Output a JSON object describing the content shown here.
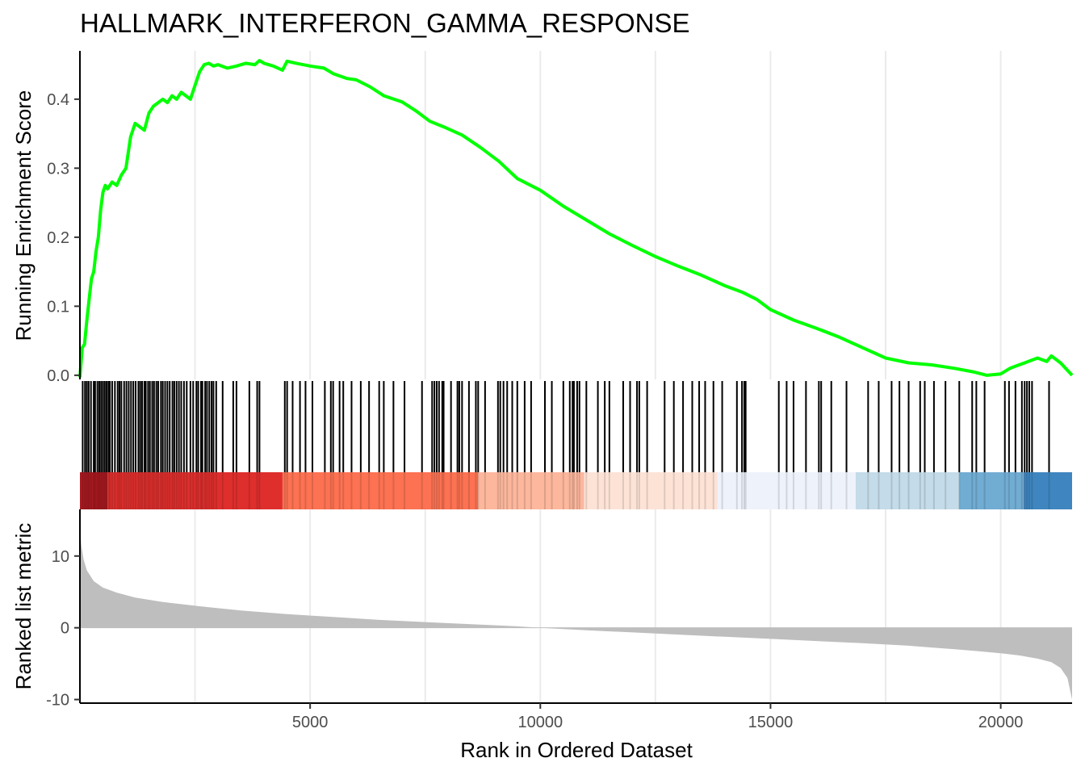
{
  "chart_data": {
    "type": "line",
    "title": "HALLMARK_INTERFERON_GAMMA_RESPONSE",
    "xlabel": "Rank in Ordered Dataset",
    "xlim": [
      0,
      21550
    ],
    "x_ticks": [
      5000,
      10000,
      15000,
      20000
    ],
    "x_tick_labels": [
      "5000",
      "10000",
      "15000",
      "20000"
    ],
    "grid_x": [
      2500,
      5000,
      7500,
      10000,
      12500,
      15000,
      17500,
      20000
    ],
    "grid": true,
    "panels": {
      "running_score": {
        "ylabel": "Running Enrichment Score",
        "ylim": [
          -0.006,
          0.47
        ],
        "y_ticks": [
          0.0,
          0.1,
          0.2,
          0.3,
          0.4
        ],
        "y_tick_labels": [
          "0.0",
          "0.1",
          "0.2",
          "0.3",
          "0.4"
        ],
        "line_color": "#00ff00",
        "series": [
          {
            "x": [
              0,
              50,
              100,
              150,
              200,
              250,
              300,
              350,
              400,
              450,
              500,
              550,
              600,
              700,
              800,
              900,
              1000,
              1100,
              1200,
              1300,
              1400,
              1500,
              1600,
              1700,
              1800,
              1900,
              2000,
              2100,
              2200,
              2300,
              2400,
              2500,
              2600,
              2700,
              2800,
              2900,
              3000,
              3200,
              3400,
              3600,
              3800,
              3900,
              4000,
              4200,
              4400,
              4500,
              4700,
              5000,
              5300,
              5500,
              5800,
              6000,
              6300,
              6600,
              7000,
              7300,
              7600,
              7900,
              8300,
              8700,
              9100,
              9500,
              10000,
              10500,
              11000,
              11500,
              12000,
              12500,
              13000,
              13500,
              14000,
              14400,
              14700,
              15000,
              15500,
              16000,
              16500,
              17000,
              17500,
              18000,
              18500,
              19000,
              19400,
              19700,
              20000,
              20200,
              20400,
              20600,
              20800,
              21000,
              21100,
              21300,
              21550
            ],
            "y": [
              -0.003,
              0.04,
              0.045,
              0.08,
              0.11,
              0.14,
              0.15,
              0.18,
              0.2,
              0.24,
              0.265,
              0.275,
              0.27,
              0.28,
              0.275,
              0.29,
              0.3,
              0.345,
              0.365,
              0.36,
              0.355,
              0.38,
              0.39,
              0.395,
              0.4,
              0.395,
              0.405,
              0.4,
              0.41,
              0.405,
              0.4,
              0.42,
              0.44,
              0.45,
              0.452,
              0.448,
              0.45,
              0.445,
              0.448,
              0.452,
              0.45,
              0.456,
              0.452,
              0.448,
              0.442,
              0.455,
              0.452,
              0.448,
              0.445,
              0.437,
              0.43,
              0.428,
              0.418,
              0.405,
              0.396,
              0.383,
              0.368,
              0.36,
              0.348,
              0.33,
              0.31,
              0.285,
              0.268,
              0.245,
              0.225,
              0.205,
              0.188,
              0.172,
              0.158,
              0.145,
              0.13,
              0.12,
              0.11,
              0.095,
              0.08,
              0.068,
              0.055,
              0.04,
              0.025,
              0.018,
              0.015,
              0.01,
              0.005,
              0.0,
              0.002,
              0.01,
              0.015,
              0.02,
              0.025,
              0.02,
              0.028,
              0.018,
              0.0
            ]
          }
        ]
      },
      "gene_hits": {
        "color": "#000000",
        "positions": [
          60,
          110,
          150,
          190,
          240,
          300,
          330,
          380,
          420,
          460,
          500,
          540,
          580,
          620,
          650,
          700,
          760,
          820,
          860,
          900,
          960,
          1010,
          1060,
          1110,
          1160,
          1210,
          1270,
          1310,
          1350,
          1400,
          1430,
          1480,
          1520,
          1570,
          1610,
          1660,
          1700,
          1760,
          1800,
          1850,
          1900,
          1950,
          2010,
          2050,
          2100,
          2150,
          2200,
          2260,
          2320,
          2400,
          2460,
          2530,
          2570,
          2630,
          2660,
          2720,
          2760,
          2810,
          2860,
          2900,
          2960,
          3100,
          3330,
          3400,
          3680,
          3850,
          3900,
          4450,
          4500,
          4620,
          4780,
          4900,
          5050,
          5320,
          5450,
          5500,
          5640,
          5720,
          5900,
          6100,
          6280,
          6500,
          6600,
          6810,
          7050,
          7430,
          7650,
          7700,
          7750,
          7800,
          7870,
          7900,
          8060,
          8200,
          8240,
          8300,
          8450,
          8600,
          8650,
          8800,
          9080,
          9130,
          9200,
          9280,
          9390,
          9500,
          9660,
          9800,
          10100,
          10250,
          10500,
          10640,
          10700,
          10730,
          10800,
          10850,
          11000,
          11250,
          11400,
          11500,
          11800,
          11950,
          12100,
          12150,
          12320,
          12700,
          12900,
          13100,
          13300,
          13450,
          13580,
          13760,
          13950,
          14270,
          14380,
          14430,
          14460,
          15180,
          15350,
          15500,
          15770,
          16050,
          16100,
          16320,
          16650,
          17120,
          17350,
          17630,
          17800,
          18000,
          18250,
          18350,
          18550,
          18800,
          19100,
          19380,
          19470,
          19650,
          20090,
          20180,
          20320,
          20460,
          20520,
          20570,
          20620,
          20680,
          21050
        ]
      },
      "color_bar": {
        "segments": [
          {
            "start": 0,
            "end": 600,
            "color": "#a81a20"
          },
          {
            "start": 600,
            "end": 4400,
            "color": "#de2f2d"
          },
          {
            "start": 4400,
            "end": 8650,
            "color": "#fc7252"
          },
          {
            "start": 8650,
            "end": 10950,
            "color": "#fcb79d"
          },
          {
            "start": 10950,
            "end": 13850,
            "color": "#fde3d6"
          },
          {
            "start": 13850,
            "end": 16850,
            "color": "#eef2fb"
          },
          {
            "start": 16850,
            "end": 19100,
            "color": "#c4dbe9"
          },
          {
            "start": 19100,
            "end": 20500,
            "color": "#71acd3"
          },
          {
            "start": 20500,
            "end": 21550,
            "color": "#3f86c0"
          }
        ]
      },
      "ranked_metric": {
        "ylabel": "Ranked list metric",
        "ylim": [
          -10.5,
          16.5
        ],
        "y_ticks": [
          -10,
          0,
          10
        ],
        "y_tick_labels": [
          "-10",
          "0",
          "10"
        ],
        "fill_color": "#bebebe",
        "profile": {
          "x": [
            0,
            30,
            80,
            150,
            300,
            500,
            800,
            1200,
            1800,
            2600,
            3500,
            4500,
            5500,
            6500,
            7500,
            8500,
            9500,
            10000,
            11000,
            12000,
            13000,
            14000,
            15000,
            16000,
            17000,
            18000,
            18500,
            19000,
            19500,
            20000,
            20400,
            20800,
            21100,
            21300,
            21450,
            21550
          ],
          "y": [
            14.5,
            11.5,
            9.5,
            8.0,
            6.5,
            5.6,
            4.9,
            4.2,
            3.6,
            3.0,
            2.4,
            1.9,
            1.5,
            1.1,
            0.8,
            0.5,
            0.2,
            0.0,
            -0.35,
            -0.65,
            -0.95,
            -1.25,
            -1.55,
            -1.85,
            -2.15,
            -2.5,
            -2.75,
            -3.0,
            -3.25,
            -3.55,
            -3.85,
            -4.3,
            -4.8,
            -5.6,
            -7.0,
            -10.0
          ]
        }
      }
    }
  }
}
